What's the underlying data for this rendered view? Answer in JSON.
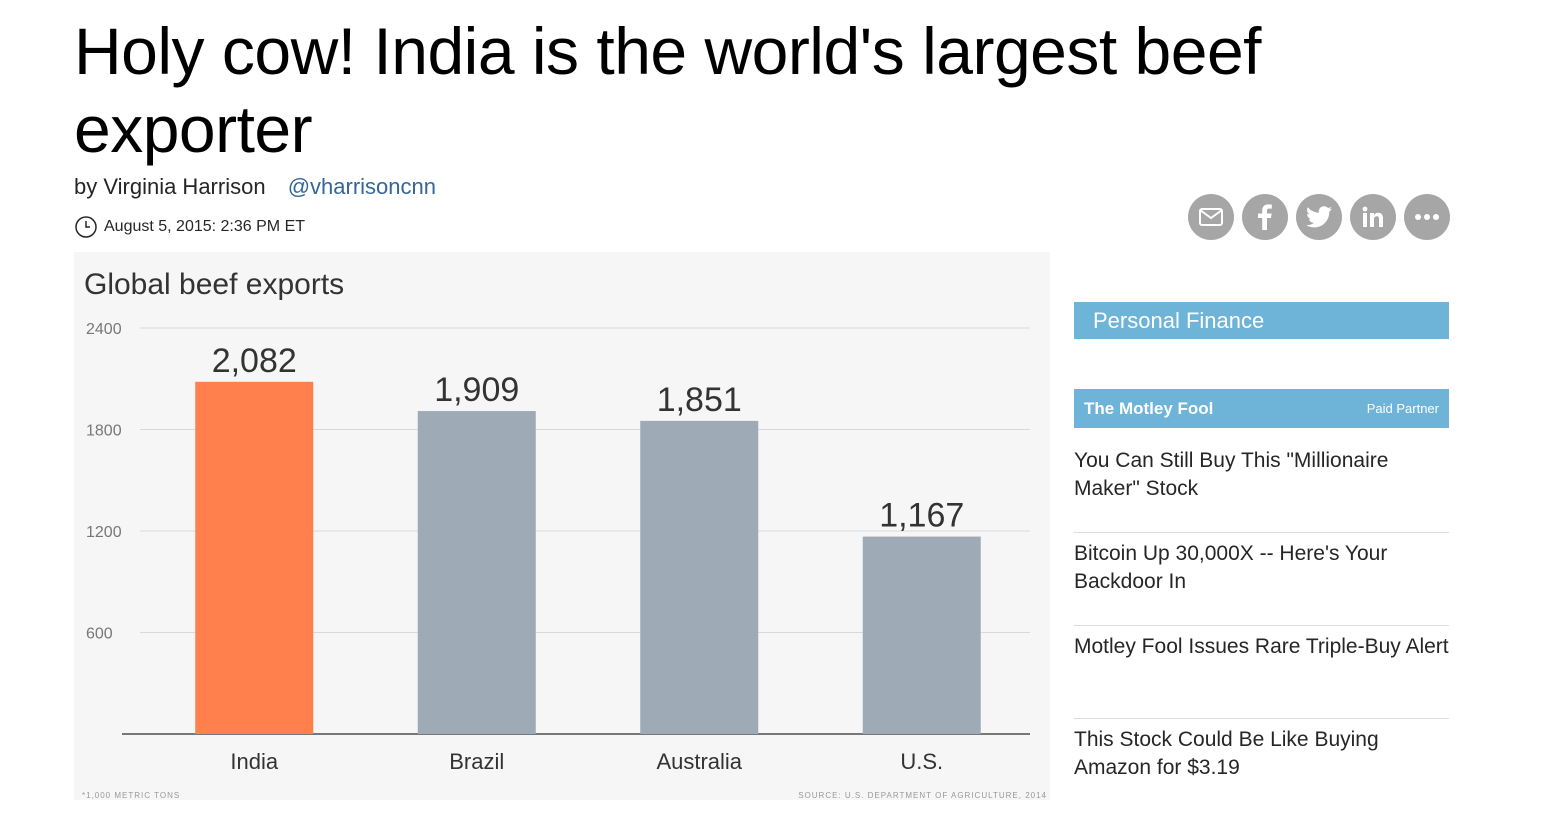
{
  "headline": "Holy cow! India is the world's largest beef exporter",
  "byline": {
    "author": "by Virginia Harrison",
    "twitter": "@vharrisoncnn"
  },
  "timestamp": "August 5, 2015: 2:36 PM ET",
  "share_icons": [
    "email-icon",
    "facebook-icon",
    "twitter-icon",
    "linkedin-icon",
    "more-icon"
  ],
  "chart_data": {
    "type": "bar",
    "title": "Global beef exports",
    "categories": [
      "India",
      "Brazil",
      "Australia",
      "U.S."
    ],
    "values": [
      2082,
      1909,
      1851,
      1167
    ],
    "value_labels": [
      "2,082",
      "1,909",
      "1,851",
      "1,167"
    ],
    "yticks": [
      "2400",
      "1800",
      "1200",
      "600"
    ],
    "ytick_values": [
      2400,
      1800,
      1200,
      600
    ],
    "ylim": [
      0,
      2400
    ],
    "grid": true,
    "unit_note": "*1,000 METRIC TONS",
    "source": "SOURCE: U.S. DEPARTMENT OF AGRICULTURE, 2014",
    "colors": {
      "highlight": "#ff7f4d",
      "default": "#9eaab6"
    }
  },
  "sidebar": {
    "section_title": "Personal Finance",
    "partner_name": "The Motley Fool",
    "partner_label": "Paid Partner",
    "links": [
      "You Can Still Buy This \"Millionaire Maker\" Stock",
      "Bitcoin Up 30,000X -- Here's Your Backdoor In",
      "Motley Fool Issues Rare Triple-Buy Alert",
      "This Stock Could Be Like Buying Amazon for $3.19"
    ]
  }
}
